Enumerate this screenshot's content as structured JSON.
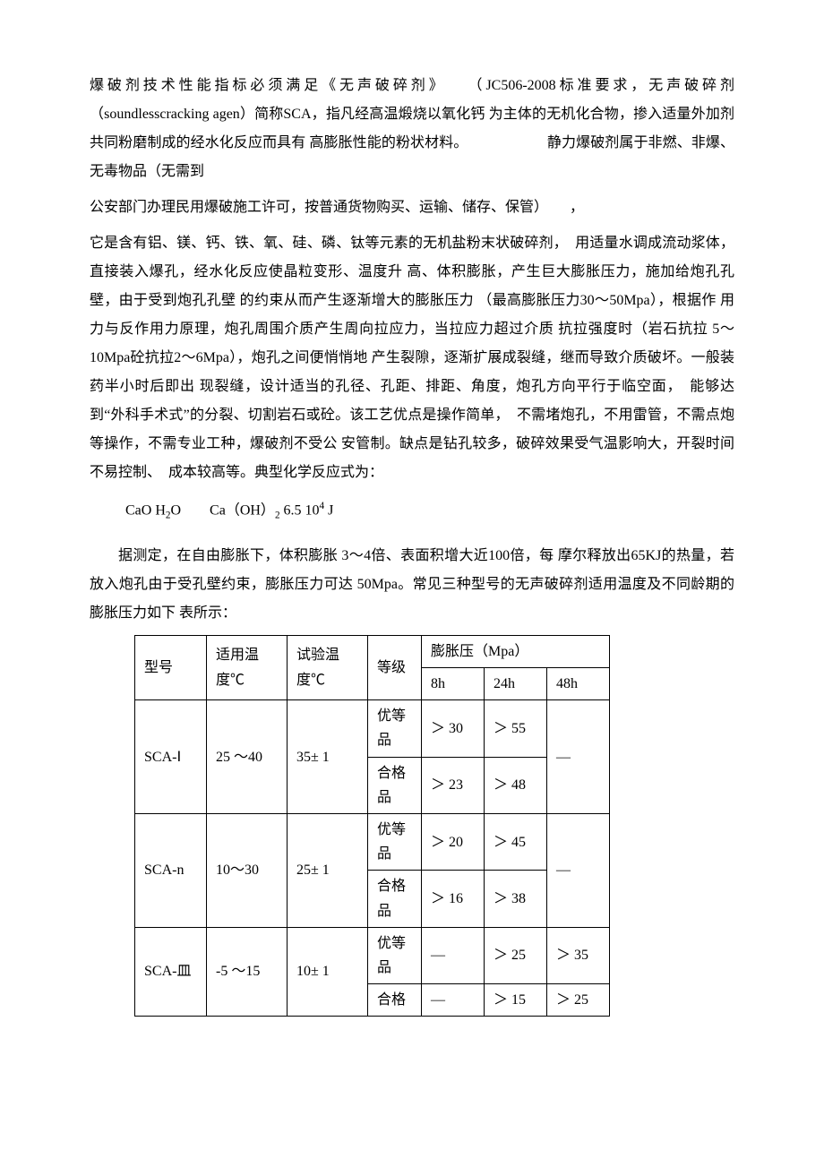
{
  "paragraphs": {
    "p1_a": "爆破剂技术性能指标必须满足《无声破碎剂》　　（JC506-2008标准要求，无声破碎剂（soundlesscracking agen）简称SCA，指凡经高温煅烧以氧化钙 为主体的无机化合物，掺入适量外加剂共同粉磨制成的经水化反应而具有 高膨胀性能的粉状材料。　　　　　　静力爆破剂属于非燃、非爆、无毒物品（无需到",
    "p1_b": "公安部门办理民用爆破施工许可，按普通货物购买、运输、储存、保管）　　，",
    "p1_c": "它是含有铝、镁、钙、铁、氧、硅、磷、钛等元素的无机盐粉末状破碎剂，　用适量水调成流动浆体，直接装入爆孔，经水化反应使晶粒变形、温度升 高、体积膨胀，产生巨大膨胀压力，施加给炮孔孔壁，由于受到炮孔孔壁 的约束从而产生逐渐增大的膨胀压力 （最高膨胀压力30～50Mpa），根据作 用力与反作用力原理，炮孔周围介质产生周向拉应力，当拉应力超过介质 抗拉强度时（岩石抗拉 5～10Mpa砼抗拉2～6Mpa），炮孔之间便悄悄地 产生裂隙，逐渐扩展成裂缝，继而导致介质破坏。一般装药半小时后即出 现裂缝，设计适当的孔径、孔距、排距、角度，炮孔方向平行于临空面，　能够达到“外科手术式”的分裂、切割岩石或砼。该工艺优点是操作简单，　不需堵炮孔，不用雷管，不需点炮等操作，不需专业工种，爆破剂不受公 安管制。缺点是钻孔较多，破碎效果受气温影响大，开裂时间不易控制、　成本较高等。典型化学反应式为：",
    "p2": "据测定，在自由膨胀下，体积膨胀 3～4倍、表面积增大近100倍，每 摩尔释放出65KJ的热量，若放入炮孔由于受孔壁约束，膨胀压力可达 50Mpa。常见三种型号的无声破碎剂适用温度及不同龄期的膨胀压力如下 表所示："
  },
  "formula": {
    "lhs1": "CaO H",
    "sub1": "2",
    "lhs2": "O　　Ca（OH）",
    "sub2": "2",
    "rhs1": " 6.5 10",
    "sup1": "4",
    "rhs2": " J"
  },
  "table": {
    "header": {
      "model": "型号",
      "temp": "适用温 度℃",
      "test": "试验温 度℃",
      "grade": "等级",
      "pressure": "膨胀压（Mpa）",
      "h8": "8h",
      "h24": "24h",
      "h48": "48h"
    },
    "rows": [
      {
        "model": "SCA-Ⅰ",
        "temp": "25 ～40",
        "test": "35± 1",
        "grades": [
          {
            "grade": "优等品",
            "h8": "＞ 30",
            "h24": "＞ 55",
            "h48": "—",
            "h48_rowspan": 2
          },
          {
            "grade": "合格品",
            "h8": "＞ 23",
            "h24": "＞ 48"
          }
        ]
      },
      {
        "model": "SCA-n",
        "temp": "10～30",
        "test": "25± 1",
        "grades": [
          {
            "grade": "优等品",
            "h8": "＞ 20",
            "h24": "＞ 45",
            "h48": "—",
            "h48_rowspan": 2
          },
          {
            "grade": "合格品",
            "h8": "＞ 16",
            "h24": "＞ 38"
          }
        ]
      },
      {
        "model": "SCA-皿",
        "temp": "-5 ～15",
        "test": "10± 1",
        "grades": [
          {
            "grade": "优等品",
            "h8": "—",
            "h24": "＞ 25",
            "h48": "＞ 35"
          },
          {
            "grade": "合格",
            "h8": "—",
            "h24": "＞ 15",
            "h48": "＞ 25"
          }
        ]
      }
    ]
  }
}
